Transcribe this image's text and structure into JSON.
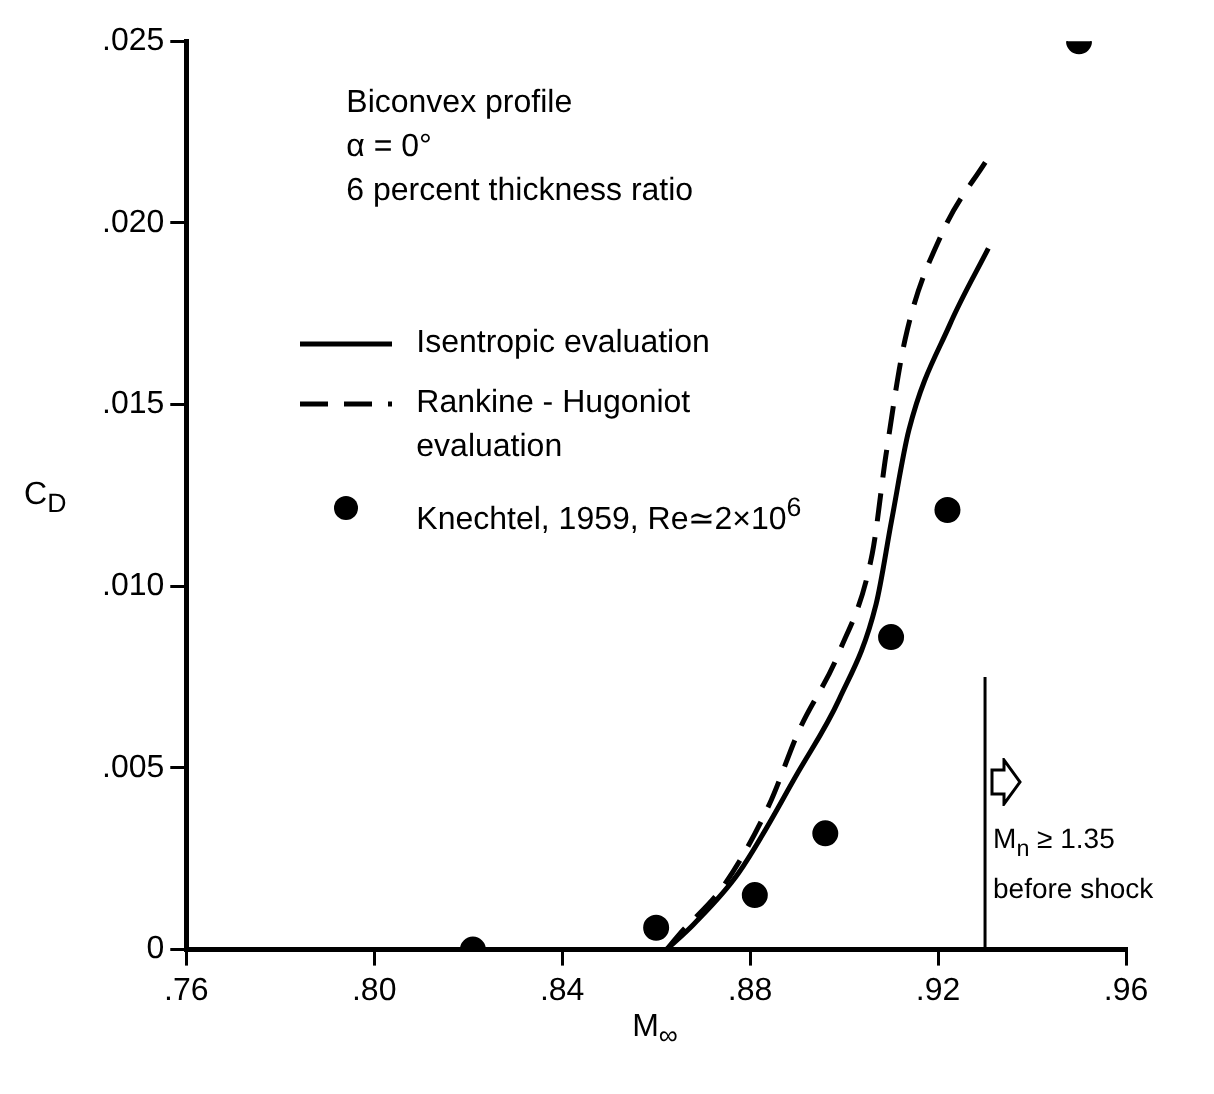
{
  "chart_data": {
    "type": "line",
    "xlabel": "M$_{∞}$",
    "ylabel": "C$_{D}$",
    "annotations": [
      "Biconvex profile",
      "α = 0°",
      "6 percent thickness ratio"
    ],
    "xlim": [
      0.76,
      0.96
    ],
    "ylim": [
      0,
      0.025
    ],
    "xticks": [
      {
        "value": 0.76,
        "label": ".76"
      },
      {
        "value": 0.8,
        "label": ".80"
      },
      {
        "value": 0.84,
        "label": ".84"
      },
      {
        "value": 0.88,
        "label": ".88"
      },
      {
        "value": 0.92,
        "label": ".92"
      },
      {
        "value": 0.96,
        "label": ".96"
      }
    ],
    "yticks": [
      0,
      {
        "value": 0.005,
        "label": ".005"
      },
      {
        "value": 0.01,
        "label": ".010"
      },
      {
        "value": 0.015,
        "label": ".015"
      },
      {
        "value": 0.02,
        "label": ".020"
      },
      {
        "value": 0.025,
        "label": ".025"
      }
    ],
    "grid": false,
    "legend": "top left",
    "series": [
      {
        "name": "Isentropic evaluation",
        "type": "line",
        "line_style": "solid",
        "marker": "none",
        "color": "#000000",
        "x": [
          0.8622,
          0.868,
          0.8775,
          0.8903,
          0.899,
          0.9068,
          0.9101,
          0.9138,
          0.9225,
          0.9307
        ],
        "values": [
          0,
          0.0007,
          0.0021,
          0.0049,
          0.0069,
          0.0095,
          0.0118,
          0.0143,
          0.0172,
          0.0193
        ]
      },
      {
        "name": "Rankine - Hugoniot evaluation",
        "type": "line",
        "line_style": "dashed",
        "marker": "none",
        "color": "#000000",
        "x": [
          0.8622,
          0.8648,
          0.8746,
          0.8841,
          0.8903,
          0.899,
          0.906,
          0.9089,
          0.913,
          0.9208,
          0.9307
        ],
        "values": [
          0,
          0.0004,
          0.0018,
          0.004,
          0.006,
          0.0082,
          0.0109,
          0.0136,
          0.0168,
          0.0197,
          0.0218
        ]
      },
      {
        "name": "Knechtel, 1959, Re≃2×10$^{6}$",
        "type": "scatter",
        "marker": "circle",
        "color": "#000000",
        "x": [
          0.821,
          0.86,
          0.881,
          0.896,
          0.91,
          0.922,
          0.95
        ],
        "values": [
          0,
          0.0006,
          0.0015,
          0.0032,
          0.0086,
          0.0121,
          0.025
        ]
      }
    ],
    "ref_lines": [
      {
        "axis": "x",
        "value": 0.93,
        "label": "M$_{n}$  ≥ 1.35 before shock",
        "color": "#000000"
      }
    ]
  }
}
